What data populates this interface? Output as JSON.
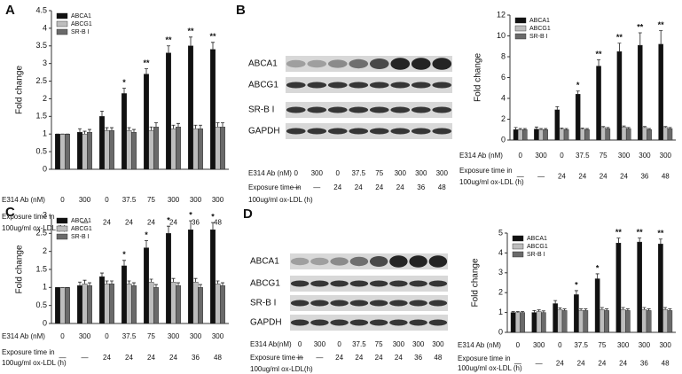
{
  "panels": [
    "A",
    "B",
    "C",
    "D"
  ],
  "chart_data": [
    {
      "type": "bar",
      "y_label": "Fold change",
      "legend": "upper left",
      "categories": [
        "0",
        "300",
        "0",
        "37.5",
        "75",
        "300",
        "300",
        "300"
      ],
      "time": [
        "—",
        "—",
        "24",
        "24",
        "24",
        "24",
        "36",
        "48"
      ],
      "x_row_labels": [
        "E314 Ab (nM)",
        "Exposure time in",
        "100ug/ml ox-LDL (h)"
      ],
      "ylim": [
        0,
        4.5
      ],
      "yticks": [
        0,
        0.5,
        1,
        1.5,
        2,
        2.5,
        3,
        3.5,
        4,
        4.5
      ],
      "annotations": [
        null,
        null,
        null,
        "*",
        "**",
        "**",
        "**",
        "**"
      ],
      "series": [
        {
          "name": "ABCA1",
          "color": "#111111",
          "values": [
            1,
            1.05,
            1.5,
            2.15,
            2.7,
            3.3,
            3.5,
            3.4
          ],
          "errors": [
            0,
            0.1,
            0.15,
            0.15,
            0.15,
            0.2,
            0.25,
            0.2
          ]
        },
        {
          "name": "ABCG1",
          "color": "#bdbdbd",
          "values": [
            1,
            1.0,
            1.1,
            1.1,
            1.1,
            1.15,
            1.15,
            1.2
          ],
          "errors": [
            0,
            0.08,
            0.08,
            0.08,
            0.1,
            0.1,
            0.1,
            0.12
          ]
        },
        {
          "name": "SR-B I",
          "color": "#6a6a6a",
          "values": [
            1,
            1.05,
            1.1,
            1.05,
            1.2,
            1.2,
            1.15,
            1.2
          ],
          "errors": [
            0,
            0.08,
            0.08,
            0.08,
            0.12,
            0.1,
            0.1,
            0.12
          ]
        }
      ]
    },
    {
      "type": "bar",
      "y_label": "Fold change",
      "legend": "upper left",
      "categories": [
        "0",
        "300",
        "0",
        "37.5",
        "75",
        "300",
        "300",
        "300"
      ],
      "time": [
        "—",
        "—",
        "24",
        "24",
        "24",
        "24",
        "36",
        "48"
      ],
      "x_row_labels": [
        "E314 Ab (nM)",
        "Exposure time in",
        "100ug/ml ox-LDL (h)"
      ],
      "ylim": [
        0,
        12
      ],
      "yticks": [
        0,
        2,
        4,
        6,
        8,
        10,
        12
      ],
      "annotations": [
        null,
        null,
        null,
        "*",
        "**",
        "**",
        "**",
        "**"
      ],
      "series": [
        {
          "name": "ABCA1",
          "color": "#111111",
          "values": [
            1,
            1.05,
            2.9,
            4.4,
            7.1,
            8.5,
            9.1,
            9.2
          ],
          "errors": [
            0.2,
            0.2,
            0.3,
            0.3,
            0.6,
            0.8,
            1.2,
            1.3
          ]
        },
        {
          "name": "ABCG1",
          "color": "#bdbdbd",
          "values": [
            1,
            1,
            1.05,
            1.05,
            1.2,
            1.25,
            1.2,
            1.2
          ],
          "errors": [
            0.1,
            0.1,
            0.1,
            0.1,
            0.1,
            0.1,
            0.1,
            0.1
          ]
        },
        {
          "name": "SR-B I",
          "color": "#6a6a6a",
          "values": [
            1,
            1,
            1,
            1,
            1.1,
            1.1,
            1.0,
            1.1
          ],
          "errors": [
            0.1,
            0.1,
            0.1,
            0.1,
            0.1,
            0.1,
            0.1,
            0.1
          ]
        }
      ]
    },
    {
      "type": "bar",
      "y_label": "Fold change",
      "legend": "upper left",
      "categories": [
        "0",
        "300",
        "0",
        "37.5",
        "75",
        "300",
        "300",
        "300"
      ],
      "time": [
        "—",
        "—",
        "24",
        "24",
        "24",
        "24",
        "36",
        "48"
      ],
      "x_row_labels": [
        "E314 Ab (nM)",
        "Exposure time in",
        "100ug/ml ox-LDL (h)"
      ],
      "ylim": [
        0,
        3
      ],
      "yticks": [
        0,
        0.5,
        1,
        1.5,
        2,
        2.5,
        3
      ],
      "annotations": [
        null,
        null,
        null,
        "*",
        "*",
        "*",
        "*",
        "*"
      ],
      "series": [
        {
          "name": "ABCA1",
          "color": "#111111",
          "values": [
            1,
            1.05,
            1.3,
            1.6,
            2.1,
            2.5,
            2.6,
            2.6
          ],
          "errors": [
            0,
            0.1,
            0.1,
            0.15,
            0.2,
            0.2,
            0.25,
            0.2
          ]
        },
        {
          "name": "ABCG1",
          "color": "#bdbdbd",
          "values": [
            1,
            1.1,
            1.1,
            1.1,
            1.15,
            1.15,
            1.15,
            1.1
          ],
          "errors": [
            0,
            0.1,
            0.08,
            0.08,
            0.08,
            0.1,
            0.1,
            0.08
          ]
        },
        {
          "name": "SR-B I",
          "color": "#6a6a6a",
          "values": [
            1,
            1.05,
            1.1,
            1.05,
            1.0,
            1.05,
            1.0,
            1.05
          ],
          "errors": [
            0,
            0.08,
            0.08,
            0.08,
            0.08,
            0.08,
            0.08,
            0.08
          ]
        }
      ]
    },
    {
      "type": "bar",
      "y_label": "Fold change",
      "legend": "upper left",
      "categories": [
        "0",
        "300",
        "0",
        "37.5",
        "75",
        "300",
        "300",
        "300"
      ],
      "time": [
        "—",
        "—",
        "24",
        "24",
        "24",
        "24",
        "36",
        "48"
      ],
      "x_row_labels": [
        "E314 Ab (nM)",
        "Exposure time in",
        "100ug/ml ox-LDL (h)"
      ],
      "ylim": [
        0,
        5
      ],
      "yticks": [
        0,
        1,
        2,
        3,
        4,
        5
      ],
      "annotations": [
        null,
        null,
        null,
        "*",
        "*",
        "**",
        "**",
        "**"
      ],
      "series": [
        {
          "name": "ABCA1",
          "color": "#111111",
          "values": [
            1,
            1,
            1.45,
            1.9,
            2.7,
            4.5,
            4.55,
            4.45
          ],
          "errors": [
            0.05,
            0.1,
            0.15,
            0.2,
            0.25,
            0.25,
            0.2,
            0.25
          ]
        },
        {
          "name": "ABCG1",
          "color": "#bdbdbd",
          "values": [
            1,
            1.05,
            1.15,
            1.1,
            1.15,
            1.15,
            1.15,
            1.15
          ],
          "errors": [
            0.05,
            0.08,
            0.08,
            0.08,
            0.1,
            0.1,
            0.1,
            0.1
          ]
        },
        {
          "name": "SR-B I",
          "color": "#6a6a6a",
          "values": [
            1,
            1,
            1.1,
            1.1,
            1.1,
            1.1,
            1.1,
            1.1
          ],
          "errors": [
            0.05,
            0.08,
            0.08,
            0.08,
            0.08,
            0.08,
            0.08,
            0.08
          ]
        }
      ]
    }
  ],
  "blots": [
    {
      "bands": [
        "ABCA1",
        "ABCG1",
        "SR-B I",
        "GAPDH"
      ],
      "dose_label": "E314 Ab (nM)",
      "time_label": [
        "Exposure time in",
        "100ug/ml ox-LDL (h)"
      ],
      "dose": [
        "0",
        "300",
        "0",
        "37.5",
        "75",
        "300",
        "300",
        "300"
      ],
      "time": [
        "—",
        "—",
        "24",
        "24",
        "24",
        "24",
        "36",
        "48"
      ]
    },
    {
      "bands": [
        "ABCA1",
        "ABCG1",
        "SR-B I",
        "GAPDH"
      ],
      "dose_label": "E314 Ab(nM)",
      "time_label": [
        "Exposure time in",
        "100ug/ml ox-LDL(h)"
      ],
      "dose": [
        "0",
        "300",
        "0",
        "37.5",
        "75",
        "300",
        "300",
        "300"
      ],
      "time": [
        "—",
        "—",
        "24",
        "24",
        "24",
        "24",
        "36",
        "48"
      ]
    }
  ]
}
